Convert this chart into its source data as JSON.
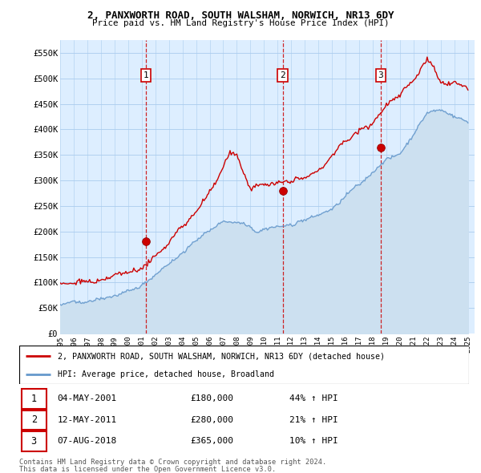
{
  "title": "2, PANXWORTH ROAD, SOUTH WALSHAM, NORWICH, NR13 6DY",
  "subtitle": "Price paid vs. HM Land Registry's House Price Index (HPI)",
  "ylim": [
    0,
    575000
  ],
  "yticks": [
    0,
    50000,
    100000,
    150000,
    200000,
    250000,
    300000,
    350000,
    400000,
    450000,
    500000,
    550000
  ],
  "ytick_labels": [
    "£0",
    "£50K",
    "£100K",
    "£150K",
    "£200K",
    "£250K",
    "£300K",
    "£350K",
    "£400K",
    "£450K",
    "£500K",
    "£550K"
  ],
  "sale_labels": [
    "1",
    "2",
    "3"
  ],
  "sale_year_nums": [
    2001.33,
    2011.37,
    2018.58
  ],
  "sale_prices": [
    180000,
    280000,
    365000
  ],
  "legend_line1": "2, PANXWORTH ROAD, SOUTH WALSHAM, NORWICH, NR13 6DY (detached house)",
  "legend_line2": "HPI: Average price, detached house, Broadland",
  "table_rows": [
    [
      "1",
      "04-MAY-2001",
      "£180,000",
      "44% ↑ HPI"
    ],
    [
      "2",
      "12-MAY-2011",
      "£280,000",
      "21% ↑ HPI"
    ],
    [
      "3",
      "07-AUG-2018",
      "£365,000",
      "10% ↑ HPI"
    ]
  ],
  "footnote1": "Contains HM Land Registry data © Crown copyright and database right 2024.",
  "footnote2": "This data is licensed under the Open Government Licence v3.0.",
  "line_color_red": "#cc0000",
  "line_color_blue": "#6699cc",
  "fill_color_blue": "#cce0f0",
  "vline_color": "#cc0000",
  "chart_bg": "#ddeeff",
  "grid_color": "#aaccee"
}
